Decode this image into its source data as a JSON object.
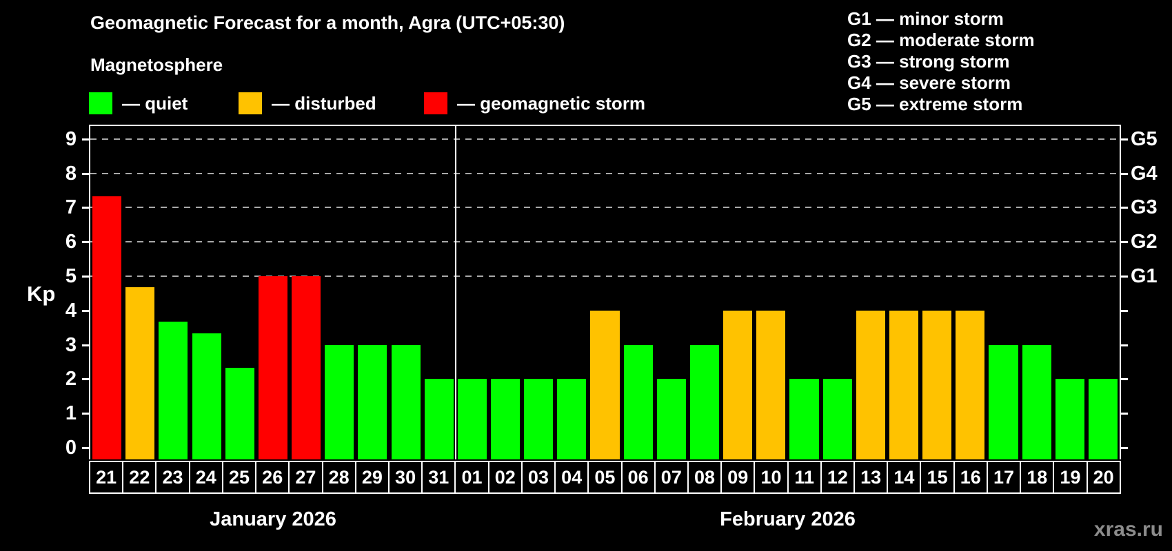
{
  "title": "Geomagnetic Forecast for a month, Agra (UTC+05:30)",
  "subtitle": "Magnetosphere",
  "legend": [
    {
      "label": "— quiet",
      "status": "quiet",
      "color": "#00ff00"
    },
    {
      "label": "— disturbed",
      "status": "disturbed",
      "color": "#ffc200"
    },
    {
      "label": "— geomagnetic storm",
      "status": "storm",
      "color": "#ff0000"
    }
  ],
  "g_legend": [
    "G1 — minor storm",
    "G2 — moderate storm",
    "G3 — strong storm",
    "G4 — severe storm",
    "G5 — extreme storm"
  ],
  "watermark": "xras.ru",
  "colors": {
    "background": "#000000",
    "quiet": "#00ff00",
    "disturbed": "#ffc200",
    "storm": "#ff0000",
    "gridline": "#a9a9a9",
    "text": "#ffffff",
    "watermark": "#8c8c8c"
  },
  "months": [
    {
      "label": "January 2026",
      "days": 11
    },
    {
      "label": "February 2026",
      "days": 20
    }
  ],
  "chart_data": {
    "type": "bar",
    "title": "Geomagnetic Forecast for a month, Agra (UTC+05:30)",
    "xlabel": "",
    "ylabel": "Kp",
    "ylim": [
      0,
      9.4
    ],
    "grid": "dashed horizontal at Kp 5-9 only",
    "y_ticks": [
      0,
      1,
      2,
      3,
      4,
      5,
      6,
      7,
      8,
      9
    ],
    "right_axis_labels": [
      {
        "label": "G1",
        "kp": 5
      },
      {
        "label": "G2",
        "kp": 6
      },
      {
        "label": "G3",
        "kp": 7
      },
      {
        "label": "G4",
        "kp": 8
      },
      {
        "label": "G5",
        "kp": 9
      }
    ],
    "categories": [
      "21",
      "22",
      "23",
      "24",
      "25",
      "26",
      "27",
      "28",
      "29",
      "30",
      "31",
      "01",
      "02",
      "03",
      "04",
      "05",
      "06",
      "07",
      "08",
      "09",
      "10",
      "11",
      "12",
      "13",
      "14",
      "15",
      "16",
      "17",
      "18",
      "19",
      "20"
    ],
    "values": [
      7.33,
      4.67,
      3.67,
      3.33,
      2.33,
      5,
      5,
      3,
      3,
      3,
      2,
      2,
      2,
      2,
      2,
      4,
      3,
      2,
      3,
      4,
      4,
      2,
      2,
      4,
      4,
      4,
      4,
      3,
      3,
      2,
      2
    ],
    "statuses": [
      "storm",
      "disturbed",
      "quiet",
      "quiet",
      "quiet",
      "storm",
      "storm",
      "quiet",
      "quiet",
      "quiet",
      "quiet",
      "quiet",
      "quiet",
      "quiet",
      "quiet",
      "disturbed",
      "quiet",
      "quiet",
      "quiet",
      "disturbed",
      "disturbed",
      "quiet",
      "quiet",
      "disturbed",
      "disturbed",
      "disturbed",
      "disturbed",
      "quiet",
      "quiet",
      "quiet",
      "quiet"
    ]
  }
}
